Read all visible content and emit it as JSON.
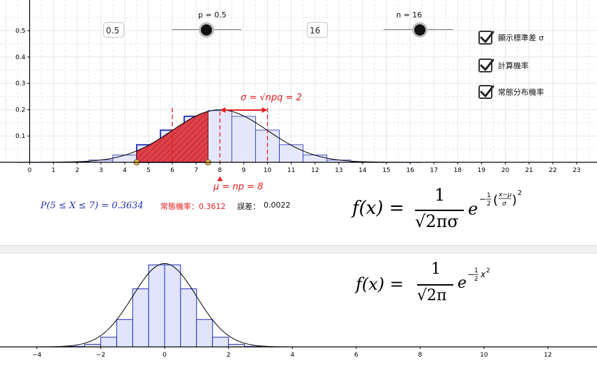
{
  "controls": {
    "p_value_box": "0.5",
    "p_slider_label": "p = 0.5",
    "p_value": 0.5,
    "n_value_box": "16",
    "n_slider_label": "n = 16",
    "n_value": 16,
    "checkboxes": [
      {
        "label": "顯示標準差 σ",
        "checked": true
      },
      {
        "label": "計算機率",
        "checked": true
      },
      {
        "label": "常態分布機率",
        "checked": true
      }
    ]
  },
  "annotations": {
    "sigma": "σ = √npq = 2",
    "mu": "μ = np = 8",
    "prob_binomial": "P(5 ≤ X ≤ 7) = 0.3634",
    "prob_normal_label": "常態機率：0.3612",
    "error_label": "誤差：",
    "error_value": "0.0022"
  },
  "formulas": {
    "general": "f(x) =",
    "general_coeff": "1",
    "general_denom": "√2πσ",
    "general_exp": "e",
    "standard": "f(x) =",
    "standard_coeff": "1",
    "standard_denom": "√2π",
    "standard_exp": "e"
  },
  "colors": {
    "blue": "#1f2fb5",
    "bar_fill": "#e2e4fb",
    "red": "#e02020",
    "red_fill": "#e0404a",
    "yellow_point": "#f2c233"
  },
  "chart_data": [
    {
      "type": "bar",
      "title": "",
      "x_ticks": [
        0,
        1,
        2,
        3,
        4,
        5,
        6,
        7,
        8,
        9,
        10,
        11,
        12,
        13,
        14,
        15,
        16,
        17,
        18,
        19,
        20,
        21,
        22,
        23
      ],
      "y_ticks": [
        0.1,
        0.2,
        0.3,
        0.4,
        0.5
      ],
      "xlim": [
        -1.2,
        24
      ],
      "ylim": [
        0,
        0.55
      ],
      "categories": [
        0,
        1,
        2,
        3,
        4,
        5,
        6,
        7,
        8,
        9,
        10,
        11,
        12,
        13,
        14,
        15,
        16
      ],
      "values": [
        2e-05,
        0.0002,
        0.0018,
        0.0085,
        0.0278,
        0.0667,
        0.1222,
        0.1746,
        0.1964,
        0.1746,
        0.1222,
        0.0667,
        0.0278,
        0.0085,
        0.0018,
        0.0002,
        2e-05
      ],
      "highlight_range": [
        5,
        7
      ],
      "normal_curve": {
        "mu": 8,
        "sigma": 2
      },
      "shaded_x_range": [
        4.5,
        7.5
      ],
      "sigma_lines_x": [
        6,
        10
      ],
      "mu_line_x": 8,
      "grid": true
    },
    {
      "type": "bar",
      "title": "",
      "x_ticks": [
        -4,
        -2,
        0,
        2,
        4,
        6,
        8,
        10,
        12
      ],
      "x_tick_labels": [
        "−4",
        "−2",
        "0",
        "2",
        "4",
        "6",
        "8",
        "10",
        "12"
      ],
      "xlim": [
        -5,
        13.5
      ],
      "categories": [
        -3.75,
        -3.25,
        -2.75,
        -2.25,
        -1.75,
        -1.25,
        -0.75,
        -0.25,
        0.25,
        0.75,
        1.25,
        1.75,
        2.25,
        2.75,
        3.25,
        3.75
      ],
      "bin_width": 0.5,
      "values": [
        4e-05,
        0.00035,
        0.0024,
        0.0122,
        0.0464,
        0.1311,
        0.2778,
        0.3928,
        0.3928,
        0.2778,
        0.1311,
        0.0464,
        0.0122,
        0.0024,
        0.00035,
        4e-05
      ],
      "normal_curve": {
        "mu": 0,
        "sigma": 1
      },
      "grid": false
    }
  ]
}
